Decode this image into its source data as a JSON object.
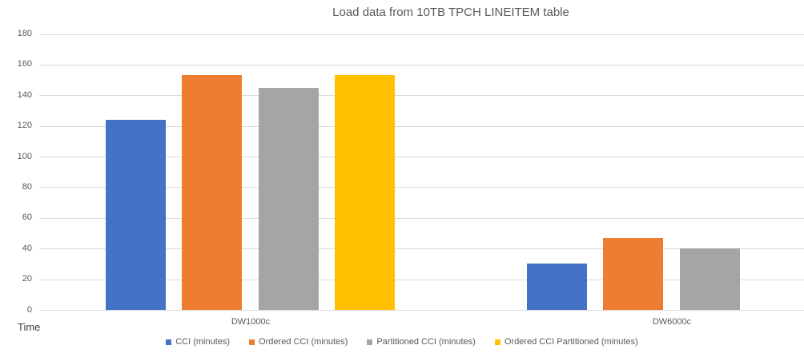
{
  "chart_data": {
    "type": "bar",
    "title": "Load data from 10TB TPCH LINEITEM table",
    "categories": [
      "DW1000c",
      "DW6000c"
    ],
    "series": [
      {
        "name": "CCI (minutes)",
        "color": "#4472C4",
        "values": [
          124,
          30
        ]
      },
      {
        "name": "Ordered CCI (minutes)",
        "color": "#ED7D31",
        "values": [
          153,
          47
        ]
      },
      {
        "name": "Partitioned CCI (minutes)",
        "color": "#A5A5A5",
        "values": [
          145,
          40
        ]
      },
      {
        "name": "Ordered CCI Partitioned (minutes)",
        "color": "#FFC000",
        "values": [
          153,
          null
        ]
      }
    ],
    "ylabel": "Time",
    "ylim": [
      0,
      180
    ],
    "ytick_step": 20,
    "yticks": [
      0,
      20,
      40,
      60,
      80,
      100,
      120,
      140,
      160,
      180
    ],
    "grid": "horizontal",
    "legend_position": "bottom"
  },
  "palette": {
    "background": "#FFFFFF",
    "grid": "#D9D9D9",
    "text": "#595959",
    "axis_note_text": "#404040"
  }
}
